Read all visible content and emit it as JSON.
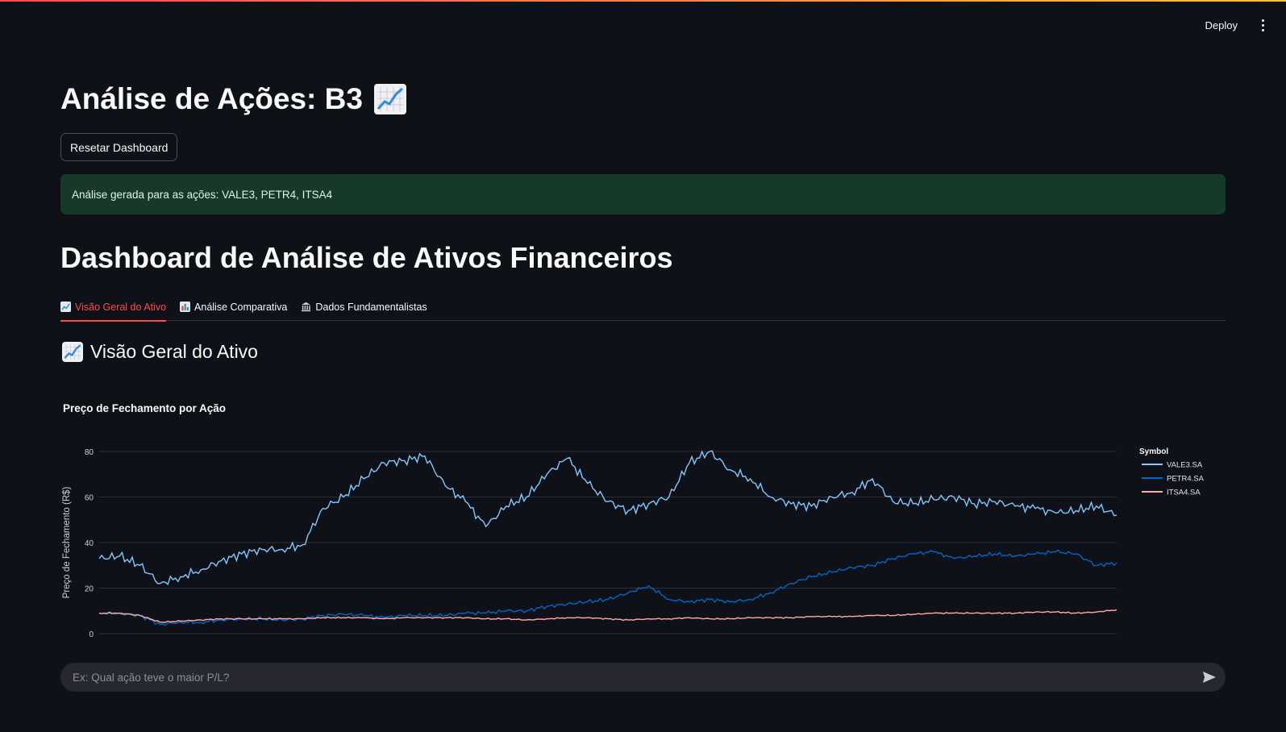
{
  "header": {
    "deploy_label": "Deploy"
  },
  "app": {
    "title": "Análise de Ações: B3",
    "reset_label": "Resetar Dashboard",
    "success_message": "Análise gerada para as ações: VALE3, PETR4, ITSA4"
  },
  "dashboard": {
    "title": "Dashboard de Análise de Ativos Financeiros"
  },
  "tabs": [
    {
      "label": "Visão Geral do Ativo",
      "icon": "chart-increasing-icon",
      "active": true
    },
    {
      "label": "Análise Comparativa",
      "icon": "bar-chart-icon",
      "active": false
    },
    {
      "label": "Dados Fundamentalistas",
      "icon": "bank-icon",
      "active": false
    }
  ],
  "section": {
    "title": "Visão Geral do Ativo"
  },
  "chat": {
    "placeholder": "Ex: Qual ação teve o maior P/L?"
  },
  "colors": {
    "accent": "#ff4b4b",
    "success_bg": "#173928",
    "vale": "#83c9ff",
    "petr": "#0068c9",
    "itsa": "#ffabab"
  },
  "chart_data": {
    "type": "line",
    "title": "Preço de Fechamento por Ação",
    "xlabel": "",
    "ylabel": "Preço de Fechamento (R$)",
    "ylim": [
      0,
      80
    ],
    "yticks": [
      0,
      20,
      40,
      60,
      80
    ],
    "legend_title": "Symbol",
    "legend_position": "right",
    "grid": true,
    "x": [
      0,
      2,
      4,
      6,
      8,
      10,
      12,
      14,
      16,
      18,
      20,
      22,
      24,
      26,
      28,
      30,
      32,
      34,
      36,
      38,
      40,
      42,
      44,
      46,
      48,
      50,
      52,
      54,
      56,
      58,
      60,
      62,
      64,
      66,
      68,
      70,
      72,
      74,
      76,
      78,
      80,
      82,
      84,
      86,
      88,
      90,
      92,
      94,
      96,
      98,
      100
    ],
    "series": [
      {
        "name": "VALE3.SA",
        "values": [
          33,
          34,
          30,
          22,
          25,
          28,
          32,
          35,
          37,
          37,
          39,
          55,
          60,
          68,
          75,
          76,
          78,
          65,
          58,
          47,
          56,
          60,
          70,
          77,
          66,
          58,
          54,
          57,
          60,
          75,
          80,
          72,
          68,
          60,
          57,
          56,
          60,
          62,
          68,
          58,
          57,
          59,
          60,
          57,
          58,
          56,
          55,
          53,
          54,
          56,
          52
        ]
      },
      {
        "name": "PETR4.SA",
        "values": [
          9,
          9,
          8,
          4,
          5,
          5,
          6,
          6.5,
          6.5,
          6,
          6.5,
          8,
          8.5,
          8,
          7,
          8,
          8,
          8,
          9,
          9,
          10,
          10,
          12,
          13,
          14,
          15,
          18,
          21,
          15,
          14,
          15,
          14,
          15,
          18,
          22,
          25,
          27,
          29,
          30,
          33,
          35,
          36,
          33,
          34,
          35,
          34,
          35,
          36,
          35,
          30,
          31
        ]
      },
      {
        "name": "ITSA4.SA",
        "values": [
          9,
          9,
          8,
          5,
          5.5,
          6,
          6.5,
          6.5,
          6.5,
          6.5,
          6.5,
          7,
          7,
          7,
          6.5,
          7,
          7,
          7,
          7,
          6.5,
          6.5,
          6,
          6.5,
          7,
          7,
          6.5,
          6,
          6.5,
          6.5,
          7,
          6.5,
          6.5,
          7,
          7,
          7,
          7.5,
          7.5,
          7.5,
          8,
          8,
          8.5,
          9,
          9,
          9,
          9,
          9,
          9.5,
          9.5,
          9,
          9.5,
          10.5
        ]
      }
    ]
  }
}
